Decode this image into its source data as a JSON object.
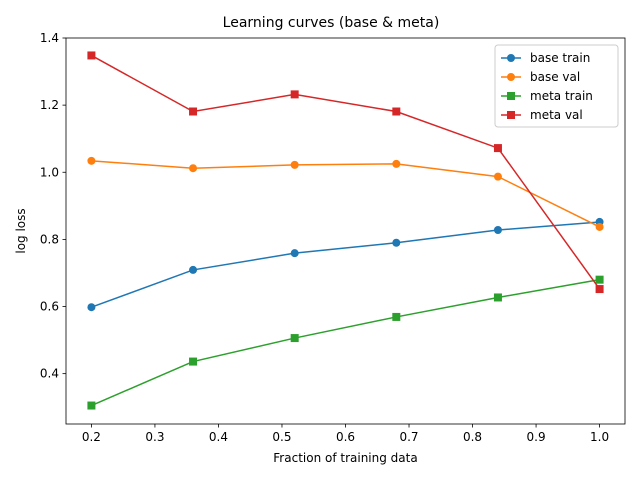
{
  "chart_data": {
    "type": "line",
    "title": "Learning curves (base & meta)",
    "xlabel": "Fraction of training data",
    "ylabel": "log loss",
    "x": [
      0.2,
      0.36,
      0.52,
      0.68,
      0.84,
      1.0
    ],
    "xlim": [
      0.16,
      1.04
    ],
    "ylim": [
      0.25,
      1.4
    ],
    "xticks": [
      0.2,
      0.3,
      0.4,
      0.5,
      0.6,
      0.7,
      0.8,
      0.9,
      1.0
    ],
    "xtick_labels": [
      "0.2",
      "0.3",
      "0.4",
      "0.5",
      "0.6",
      "0.7",
      "0.8",
      "0.9",
      "1.0"
    ],
    "yticks": [
      0.4,
      0.6,
      0.8,
      1.0,
      1.2,
      1.4
    ],
    "ytick_labels": [
      "0.4",
      "0.6",
      "0.8",
      "1.0",
      "1.2",
      "1.4"
    ],
    "grid": false,
    "legend_position": "top-right",
    "series": [
      {
        "name": "base train",
        "values": [
          0.598,
          0.709,
          0.759,
          0.79,
          0.828,
          0.852
        ],
        "color": "#1f77b4",
        "marker": "circle"
      },
      {
        "name": "base val",
        "values": [
          1.034,
          1.012,
          1.022,
          1.025,
          0.987,
          0.837
        ],
        "color": "#ff7f0e",
        "marker": "circle"
      },
      {
        "name": "meta train",
        "values": [
          0.305,
          0.436,
          0.506,
          0.569,
          0.627,
          0.68
        ],
        "color": "#2ca02c",
        "marker": "square"
      },
      {
        "name": "meta val",
        "values": [
          1.348,
          1.181,
          1.232,
          1.181,
          1.072,
          0.652
        ],
        "color": "#d62728",
        "marker": "square"
      }
    ]
  }
}
